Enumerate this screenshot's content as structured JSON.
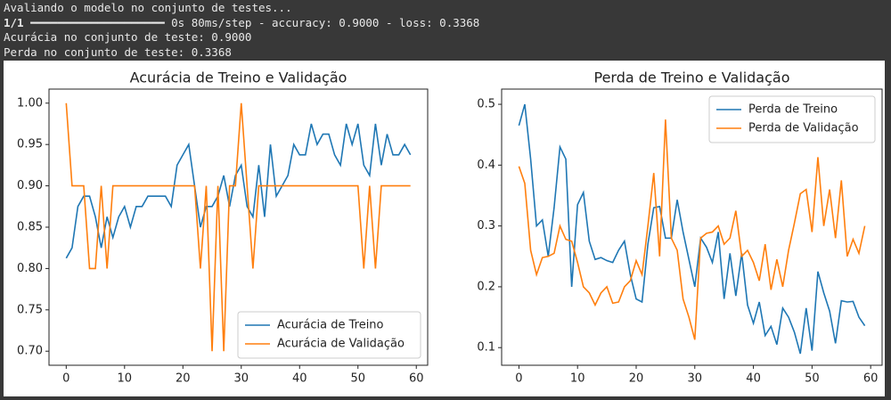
{
  "console": {
    "lines": [
      "Avaliando o modelo no conjunto de testes...",
      "1/1",
      "━━━━━━━━━━━━━━━━━━━━ 0s 80ms/step - accuracy: 0.9000 - loss: 0.3368",
      "Acurácia no conjunto de teste: 0.9000",
      "Perda no conjunto de teste: 0.3368"
    ]
  },
  "chart_data": [
    {
      "type": "line",
      "title": "Acurácia de Treino e Validação",
      "x": [
        0,
        1,
        2,
        3,
        4,
        5,
        6,
        7,
        8,
        9,
        10,
        11,
        12,
        13,
        14,
        15,
        16,
        17,
        18,
        19,
        20,
        21,
        22,
        23,
        24,
        25,
        26,
        27,
        28,
        29,
        30,
        31,
        32,
        33,
        34,
        35,
        36,
        37,
        38,
        39,
        40,
        41,
        42,
        43,
        44,
        45,
        46,
        47,
        48,
        49,
        50,
        51,
        52,
        53,
        54,
        55,
        56,
        57,
        58,
        59
      ],
      "series": [
        {
          "name": "Acurácia de Treino",
          "color": "#1f77b4",
          "values": [
            0.8125,
            0.825,
            0.875,
            0.8875,
            0.8875,
            0.8625,
            0.825,
            0.8625,
            0.8375,
            0.8625,
            0.875,
            0.85,
            0.875,
            0.875,
            0.8875,
            0.8875,
            0.8875,
            0.8875,
            0.875,
            0.925,
            0.9375,
            0.95,
            0.9,
            0.85,
            0.875,
            0.875,
            0.8875,
            0.9125,
            0.875,
            0.9125,
            0.925,
            0.875,
            0.8625,
            0.925,
            0.8625,
            0.95,
            0.8875,
            0.9,
            0.9125,
            0.95,
            0.9375,
            0.9375,
            0.975,
            0.95,
            0.9625,
            0.9625,
            0.9375,
            0.925,
            0.975,
            0.95,
            0.975,
            0.925,
            0.9125,
            0.975,
            0.925,
            0.9625,
            0.9375,
            0.9375,
            0.95,
            0.9375
          ]
        },
        {
          "name": "Acurácia de Validação",
          "color": "#ff7f0e",
          "values": [
            1.0,
            0.9,
            0.9,
            0.9,
            0.8,
            0.8,
            0.9,
            0.8,
            0.9,
            0.9,
            0.9,
            0.9,
            0.9,
            0.9,
            0.9,
            0.9,
            0.9,
            0.9,
            0.9,
            0.9,
            0.9,
            0.9,
            0.9,
            0.8,
            0.9,
            0.7,
            0.9,
            0.7,
            0.9,
            0.9,
            1.0,
            0.9,
            0.8,
            0.9,
            0.9,
            0.9,
            0.9,
            0.9,
            0.9,
            0.9,
            0.9,
            0.9,
            0.9,
            0.9,
            0.9,
            0.9,
            0.9,
            0.9,
            0.9,
            0.9,
            0.9,
            0.8,
            0.9,
            0.8,
            0.9,
            0.9,
            0.9,
            0.9,
            0.9,
            0.9
          ]
        }
      ],
      "xlim": [
        -2.95,
        61.95
      ],
      "ylim": [
        0.683,
        1.017
      ],
      "xticks": [
        0,
        10,
        20,
        30,
        40,
        50,
        60
      ],
      "yticks": [
        {
          "value": 0.7,
          "label": "0.70"
        },
        {
          "value": 0.75,
          "label": "0.75"
        },
        {
          "value": 0.8,
          "label": "0.80"
        },
        {
          "value": 0.85,
          "label": "0.85"
        },
        {
          "value": 0.9,
          "label": "0.90"
        },
        {
          "value": 0.95,
          "label": "0.95"
        },
        {
          "value": 1.0,
          "label": "1.00"
        }
      ],
      "legend": "lower right"
    },
    {
      "type": "line",
      "title": "Perda de Treino e Validação",
      "x": [
        0,
        1,
        2,
        3,
        4,
        5,
        6,
        7,
        8,
        9,
        10,
        11,
        12,
        13,
        14,
        15,
        16,
        17,
        18,
        19,
        20,
        21,
        22,
        23,
        24,
        25,
        26,
        27,
        28,
        29,
        30,
        31,
        32,
        33,
        34,
        35,
        36,
        37,
        38,
        39,
        40,
        41,
        42,
        43,
        44,
        45,
        46,
        47,
        48,
        49,
        50,
        51,
        52,
        53,
        54,
        55,
        56,
        57,
        58,
        59
      ],
      "series": [
        {
          "name": "Perda de Treino",
          "color": "#1f77b4",
          "values": [
            0.465,
            0.5,
            0.41,
            0.3,
            0.31,
            0.25,
            0.33,
            0.43,
            0.41,
            0.2,
            0.335,
            0.355,
            0.275,
            0.245,
            0.248,
            0.243,
            0.24,
            0.26,
            0.275,
            0.22,
            0.18,
            0.175,
            0.27,
            0.33,
            0.332,
            0.28,
            0.28,
            0.343,
            0.29,
            0.245,
            0.2,
            0.28,
            0.265,
            0.24,
            0.29,
            0.18,
            0.255,
            0.185,
            0.255,
            0.17,
            0.14,
            0.175,
            0.12,
            0.135,
            0.105,
            0.165,
            0.15,
            0.125,
            0.09,
            0.165,
            0.095,
            0.225,
            0.19,
            0.16,
            0.107,
            0.177,
            0.175,
            0.176,
            0.15,
            0.136
          ]
        },
        {
          "name": "Perda de Validação",
          "color": "#ff7f0e",
          "values": [
            0.398,
            0.37,
            0.26,
            0.22,
            0.248,
            0.25,
            0.255,
            0.3,
            0.278,
            0.275,
            0.24,
            0.2,
            0.19,
            0.17,
            0.19,
            0.2,
            0.173,
            0.175,
            0.2,
            0.21,
            0.243,
            0.22,
            0.3,
            0.387,
            0.25,
            0.475,
            0.28,
            0.26,
            0.18,
            0.15,
            0.113,
            0.28,
            0.288,
            0.29,
            0.3,
            0.27,
            0.28,
            0.325,
            0.25,
            0.26,
            0.24,
            0.21,
            0.27,
            0.195,
            0.245,
            0.2,
            0.26,
            0.305,
            0.353,
            0.36,
            0.29,
            0.413,
            0.3,
            0.36,
            0.28,
            0.375,
            0.25,
            0.278,
            0.255,
            0.3
          ]
        }
      ],
      "xlim": [
        -2.95,
        61.95
      ],
      "ylim": [
        0.071,
        0.525
      ],
      "xticks": [
        0,
        10,
        20,
        30,
        40,
        50,
        60
      ],
      "yticks": [
        0.1,
        0.2,
        0.3,
        0.4,
        0.5
      ],
      "legend": "upper right"
    }
  ]
}
